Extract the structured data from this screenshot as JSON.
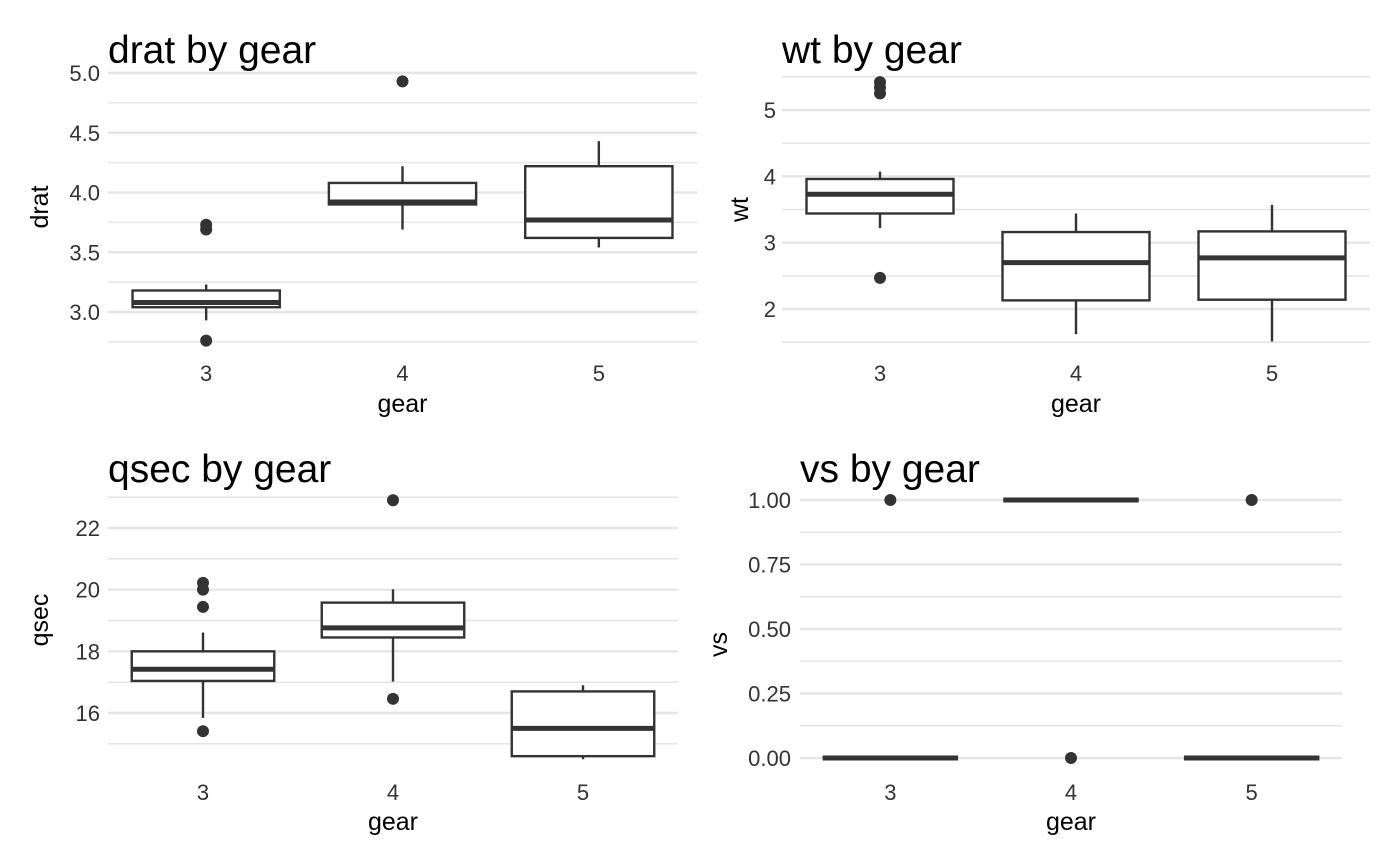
{
  "chart_data": [
    {
      "type": "boxplot",
      "title": "drat by gear",
      "xlabel": "gear",
      "ylabel": "drat",
      "categories": [
        "3",
        "4",
        "5"
      ],
      "ylim": [
        2.7,
        5.0
      ],
      "yticks": [
        3.0,
        3.5,
        4.0,
        4.5,
        5.0
      ],
      "ytick_labels": [
        "3.0",
        "3.5",
        "4.0",
        "4.5",
        "5.0"
      ],
      "boxes": [
        {
          "category": "3",
          "whisker_low": 2.93,
          "q1": 3.04,
          "median": 3.08,
          "q3": 3.18,
          "whisker_high": 3.23,
          "outliers": [
            2.76,
            3.69,
            3.73
          ]
        },
        {
          "category": "4",
          "whisker_low": 3.69,
          "q1": 3.9,
          "median": 3.92,
          "q3": 4.08,
          "whisker_high": 4.22,
          "outliers": [
            4.93
          ]
        },
        {
          "category": "5",
          "whisker_low": 3.54,
          "q1": 3.62,
          "median": 3.77,
          "q3": 4.22,
          "whisker_high": 4.43,
          "outliers": []
        }
      ]
    },
    {
      "type": "boxplot",
      "title": "wt by gear",
      "xlabel": "gear",
      "ylabel": "wt",
      "categories": [
        "3",
        "4",
        "5"
      ],
      "ylim": [
        1.5,
        5.5
      ],
      "yticks": [
        2,
        3,
        4,
        5
      ],
      "ytick_labels": [
        "2",
        "3",
        "4",
        "5"
      ],
      "boxes": [
        {
          "category": "3",
          "whisker_low": 3.22,
          "q1": 3.44,
          "median": 3.73,
          "q3": 3.96,
          "whisker_high": 4.07,
          "outliers": [
            2.47,
            5.25,
            5.34,
            5.42
          ]
        },
        {
          "category": "4",
          "whisker_low": 1.62,
          "q1": 2.13,
          "median": 2.7,
          "q3": 3.16,
          "whisker_high": 3.44,
          "outliers": []
        },
        {
          "category": "5",
          "whisker_low": 1.51,
          "q1": 2.14,
          "median": 2.77,
          "q3": 3.17,
          "whisker_high": 3.57,
          "outliers": []
        }
      ]
    },
    {
      "type": "boxplot",
      "title": "qsec by gear",
      "xlabel": "gear",
      "ylabel": "qsec",
      "categories": [
        "3",
        "4",
        "5"
      ],
      "ylim": [
        14.5,
        23.0
      ],
      "yticks": [
        16,
        18,
        20,
        22
      ],
      "ytick_labels": [
        "16",
        "18",
        "20",
        "22"
      ],
      "boxes": [
        {
          "category": "3",
          "whisker_low": 15.84,
          "q1": 17.04,
          "median": 17.42,
          "q3": 18.0,
          "whisker_high": 18.61,
          "outliers": [
            15.41,
            19.44,
            20.0,
            20.22
          ]
        },
        {
          "category": "4",
          "whisker_low": 17.02,
          "q1": 18.45,
          "median": 18.76,
          "q3": 19.58,
          "whisker_high": 20.01,
          "outliers": [
            16.46,
            22.9
          ]
        },
        {
          "category": "5",
          "whisker_low": 14.5,
          "q1": 14.6,
          "median": 15.5,
          "q3": 16.7,
          "whisker_high": 16.9,
          "outliers": []
        }
      ]
    },
    {
      "type": "boxplot",
      "title": "vs by gear",
      "xlabel": "gear",
      "ylabel": "vs",
      "categories": [
        "3",
        "4",
        "5"
      ],
      "ylim": [
        0,
        1
      ],
      "yticks": [
        0,
        0.25,
        0.5,
        0.75,
        1.0
      ],
      "ytick_labels": [
        "0.00",
        "0.25",
        "0.50",
        "0.75",
        "1.00"
      ],
      "boxes": [
        {
          "category": "3",
          "whisker_low": 0,
          "q1": 0,
          "median": 0,
          "q3": 0,
          "whisker_high": 0,
          "outliers": [
            1
          ]
        },
        {
          "category": "4",
          "whisker_low": 1,
          "q1": 1,
          "median": 1,
          "q3": 1,
          "whisker_high": 1,
          "outliers": [
            0
          ]
        },
        {
          "category": "5",
          "whisker_low": 0,
          "q1": 0,
          "median": 0,
          "q3": 0,
          "whisker_high": 0,
          "outliers": [
            1
          ]
        }
      ]
    }
  ]
}
